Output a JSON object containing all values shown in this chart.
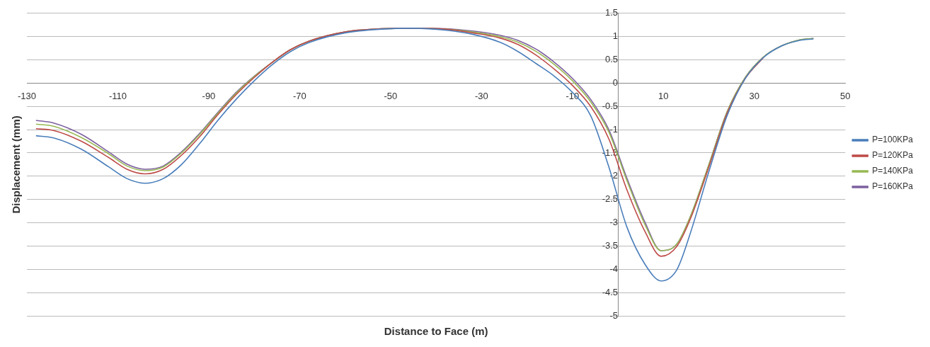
{
  "chart_data": {
    "type": "line",
    "xlabel": "Distance to Face (m)",
    "ylabel": "Displacement (mm)",
    "x": [
      -128,
      -124,
      -118,
      -112,
      -108,
      -104,
      -100,
      -96,
      -92,
      -88,
      -84,
      -80,
      -76,
      -72,
      -68,
      -60,
      -52,
      -45,
      -38,
      -32,
      -26,
      -22,
      -18,
      -14,
      -10,
      -6,
      -2,
      2,
      6,
      9.5,
      13,
      16,
      20,
      24,
      28,
      32,
      36,
      40,
      43
    ],
    "series": [
      {
        "name": "P=100KPa",
        "color": "#4a7ebb",
        "values": [
          -1.13,
          -1.18,
          -1.42,
          -1.8,
          -2.05,
          -2.15,
          -2.05,
          -1.75,
          -1.3,
          -0.8,
          -0.35,
          0.05,
          0.4,
          0.68,
          0.87,
          1.08,
          1.16,
          1.18,
          1.14,
          1.05,
          0.88,
          0.68,
          0.42,
          0.15,
          -0.2,
          -0.7,
          -1.8,
          -3.1,
          -3.9,
          -4.25,
          -4.0,
          -3.2,
          -1.9,
          -0.7,
          0.1,
          0.55,
          0.8,
          0.92,
          0.95
        ]
      },
      {
        "name": "P=120KPa",
        "color": "#be4b48",
        "values": [
          -0.98,
          -1.02,
          -1.25,
          -1.6,
          -1.85,
          -1.95,
          -1.85,
          -1.55,
          -1.15,
          -0.68,
          -0.25,
          0.12,
          0.45,
          0.72,
          0.9,
          1.1,
          1.17,
          1.18,
          1.16,
          1.08,
          0.97,
          0.83,
          0.6,
          0.3,
          -0.05,
          -0.5,
          -1.2,
          -2.3,
          -3.2,
          -3.72,
          -3.5,
          -2.9,
          -1.8,
          -0.65,
          0.1,
          0.55,
          null,
          null,
          null
        ]
      },
      {
        "name": "P=140KPa",
        "color": "#98b954",
        "values": [
          -0.88,
          -0.93,
          -1.17,
          -1.52,
          -1.78,
          -1.88,
          -1.8,
          -1.5,
          -1.1,
          -0.65,
          -0.22,
          0.14,
          0.45,
          0.72,
          0.9,
          1.1,
          1.17,
          1.18,
          1.16,
          1.1,
          1.0,
          0.88,
          0.68,
          0.4,
          0.05,
          -0.4,
          -1.05,
          -2.1,
          -3.05,
          -3.6,
          -3.45,
          -2.85,
          -1.75,
          -0.62,
          0.12,
          0.56,
          0.8,
          0.93,
          0.96
        ]
      },
      {
        "name": "P=160KPa",
        "color": "#7d60a0",
        "values": [
          -0.8,
          -0.86,
          -1.1,
          -1.48,
          -1.74,
          -1.85,
          -1.78,
          -1.48,
          -1.08,
          -0.63,
          -0.2,
          0.15,
          0.45,
          0.72,
          0.9,
          1.1,
          1.17,
          1.18,
          1.17,
          1.12,
          1.03,
          0.92,
          0.73,
          0.45,
          0.1,
          -0.35,
          -1.0,
          -2.05,
          -3.0,
          -3.6,
          -3.45,
          -2.85,
          -1.75,
          -0.62,
          0.12,
          0.56,
          0.8,
          0.93,
          0.96
        ]
      }
    ],
    "xlim": [
      -130,
      50
    ],
    "xticks": [
      -130,
      -110,
      -90,
      -70,
      -50,
      -30,
      -10,
      10,
      30,
      50
    ],
    "ylim": [
      -5,
      1.5
    ],
    "yticks": [
      -5,
      -4.5,
      -4,
      -3.5,
      -3,
      -2.5,
      -2,
      -1.5,
      -1,
      -0.5,
      0,
      0.5,
      1,
      1.5
    ],
    "grid": "y",
    "legend": "right",
    "marker": "none",
    "line_style": "solid"
  }
}
